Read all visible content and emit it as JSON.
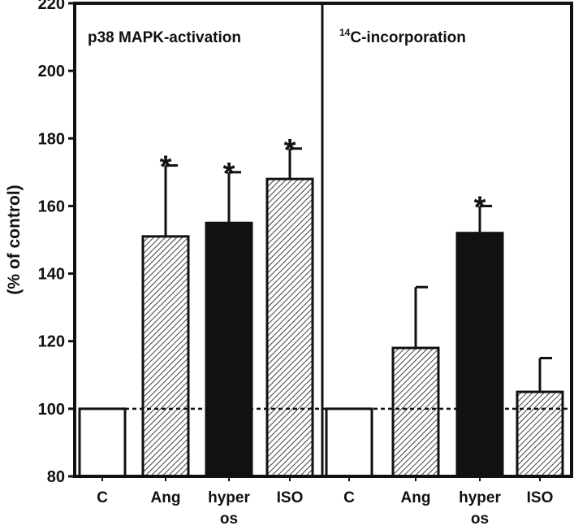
{
  "chart_data": {
    "type": "bar",
    "ylabel": "(% of control)",
    "ylim": [
      80,
      220
    ],
    "yticks": [
      80,
      100,
      120,
      140,
      160,
      180,
      200,
      220
    ],
    "reference_line": 100,
    "grid": false,
    "panels": [
      {
        "title": "p38 MAPK-activation",
        "categories": [
          {
            "label": [
              "C"
            ],
            "value": 100,
            "error": 0,
            "style": "open",
            "significant": false
          },
          {
            "label": [
              "Ang"
            ],
            "value": 151,
            "error": 21,
            "style": "hatched",
            "significant": true
          },
          {
            "label": [
              "hyper",
              "os"
            ],
            "value": 155,
            "error": 15,
            "style": "solid",
            "significant": true
          },
          {
            "label": [
              "ISO"
            ],
            "value": 168,
            "error": 9,
            "style": "hatched",
            "significant": true
          }
        ]
      },
      {
        "title_superscript": "14",
        "title": "C-incorporation",
        "categories": [
          {
            "label": [
              "C"
            ],
            "value": 100,
            "error": 0,
            "style": "open",
            "significant": false
          },
          {
            "label": [
              "Ang"
            ],
            "value": 118,
            "error": 18,
            "style": "hatched",
            "significant": false
          },
          {
            "label": [
              "hyper",
              "os"
            ],
            "value": 152,
            "error": 8,
            "style": "solid",
            "significant": true
          },
          {
            "label": [
              "ISO"
            ],
            "value": 105,
            "error": 10,
            "style": "hatched",
            "significant": false
          }
        ]
      }
    ],
    "significance_marker": "*"
  },
  "colors": {
    "frame": "#111111",
    "solid_bar": "#111111",
    "open_bar": "#ffffff",
    "hatch": "#111111"
  }
}
